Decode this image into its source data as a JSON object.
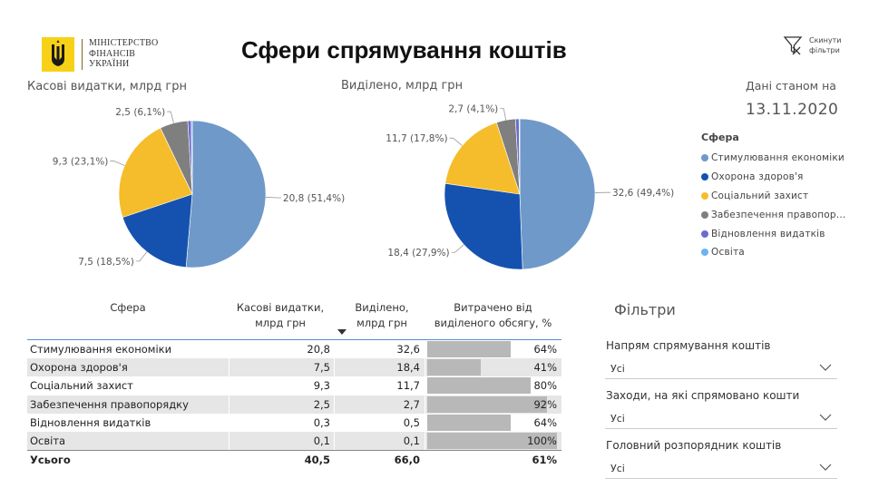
{
  "header": {
    "logo_lines": [
      "МІНІСТЕРСТВО",
      "ФІНАНСІВ",
      "УКРАЇНИ"
    ],
    "title": "Сфери спрямування коштів",
    "reset_label": "Скинути\nфільтри"
  },
  "date": {
    "label": "Дані станом на",
    "value": "13.11.2020"
  },
  "legend": {
    "title": "Сфера",
    "items": [
      {
        "label": "Стимулювання економіки",
        "color": "#6f99c8"
      },
      {
        "label": "Охорона здоров'я",
        "color": "#1552b0"
      },
      {
        "label": "Соціальний захист",
        "color": "#f5bd2b"
      },
      {
        "label": "Забезпечення правопор...",
        "color": "#7f7f7f"
      },
      {
        "label": "Відновлення видатків",
        "color": "#6b6bcf"
      },
      {
        "label": "Освіта",
        "color": "#6fb2f2"
      }
    ]
  },
  "chart_data": [
    {
      "type": "pie",
      "title": "Касові видатки, млрд грн",
      "categories": [
        "Стимулювання економіки",
        "Охорона здоров'я",
        "Соціальний захист",
        "Забезпечення правопорядку",
        "Відновлення видатків",
        "Освіта"
      ],
      "values": [
        20.8,
        7.5,
        9.3,
        2.5,
        0.3,
        0.1
      ],
      "colors": [
        "#6f99c8",
        "#1552b0",
        "#f5bd2b",
        "#7f7f7f",
        "#6b6bcf",
        "#6fb2f2"
      ],
      "data_labels": [
        "20,8 (51,4%)",
        "7,5 (18,5%)",
        "9,3 (23,1%)",
        "2,5 (6,1%)",
        "",
        ""
      ]
    },
    {
      "type": "pie",
      "title": "Виділено, млрд грн",
      "categories": [
        "Стимулювання економіки",
        "Охорона здоров'я",
        "Соціальний захист",
        "Забезпечення правопорядку",
        "Відновлення видатків",
        "Освіта"
      ],
      "values": [
        32.6,
        18.4,
        11.7,
        2.7,
        0.5,
        0.1
      ],
      "colors": [
        "#6f99c8",
        "#1552b0",
        "#f5bd2b",
        "#7f7f7f",
        "#6b6bcf",
        "#6fb2f2"
      ],
      "data_labels": [
        "32,6 (49,4%)",
        "18,4 (27,9%)",
        "11,7 (17,8%)",
        "2,7 (4,1%)",
        "",
        ""
      ]
    }
  ],
  "table": {
    "headers": {
      "name": "Сфера",
      "cash": "Касові видатки,\nмлрд грн",
      "alloc": "Виділено,\nмлрд грн",
      "spent": "Витрачено від\nвиділеного обсягу, %"
    },
    "rows": [
      {
        "name": "Стимулювання економіки",
        "cash": "20,8",
        "alloc": "32,6",
        "spent": "64%",
        "spent_value": 64
      },
      {
        "name": "Охорона здоров'я",
        "cash": "7,5",
        "alloc": "18,4",
        "spent": "41%",
        "spent_value": 41
      },
      {
        "name": "Соціальний захист",
        "cash": "9,3",
        "alloc": "11,7",
        "spent": "80%",
        "spent_value": 80
      },
      {
        "name": "Забезпечення правопорядку",
        "cash": "2,5",
        "alloc": "2,7",
        "spent": "92%",
        "spent_value": 92
      },
      {
        "name": "Відновлення видатків",
        "cash": "0,3",
        "alloc": "0,5",
        "spent": "64%",
        "spent_value": 64
      },
      {
        "name": "Освіта",
        "cash": "0,1",
        "alloc": "0,1",
        "spent": "100%",
        "spent_value": 100
      }
    ],
    "total": {
      "name": "Усього",
      "cash": "40,5",
      "alloc": "66,0",
      "spent": "61%"
    }
  },
  "filters": {
    "title": "Фільтри",
    "items": [
      {
        "label": "Напрям спрямування коштів",
        "value": "Усі"
      },
      {
        "label": "Заходи, на які спрямовано кошти",
        "value": "Усі"
      },
      {
        "label": "Головний розпорядник коштів",
        "value": "Усі"
      }
    ]
  }
}
